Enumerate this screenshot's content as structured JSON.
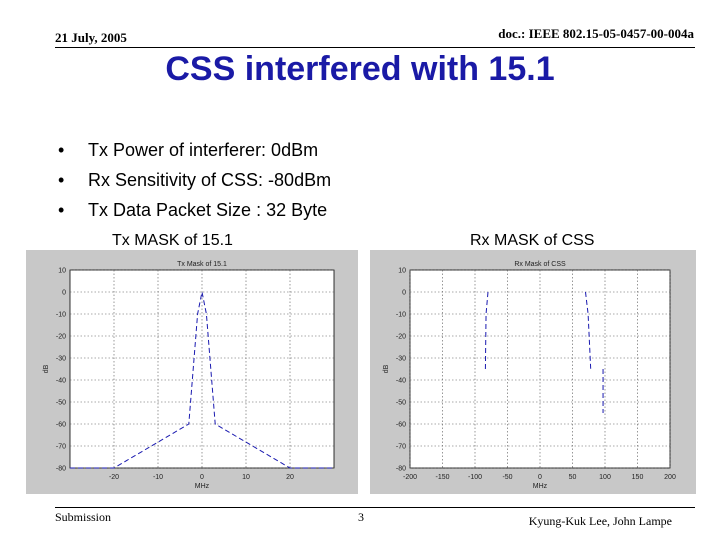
{
  "header": {
    "date": "21 July, 2005",
    "doc_id": "doc.: IEEE 802.15-05-0457-00-004a"
  },
  "title": "CSS interfered with 15.1",
  "bullets": [
    "Tx Power of interferer: 0dBm",
    "Rx Sensitivity of CSS: -80dBm",
    "Tx Data Packet Size : 32 Byte"
  ],
  "plots": {
    "left_label": "Tx MASK of 15.1",
    "right_label": "Rx MASK of CSS"
  },
  "chart_data": [
    {
      "type": "line",
      "title": "Tx Mask of 15.1",
      "xlabel": "MHz",
      "ylabel": "dB",
      "xlim": [
        -30,
        30
      ],
      "ylim": [
        -80,
        10
      ],
      "x_ticks": [
        "-20",
        "-10",
        "0",
        "10",
        "20"
      ],
      "y_ticks": [
        "10",
        "0",
        "-10",
        "-20",
        "-30",
        "-40",
        "-50",
        "-60",
        "-70",
        "-80"
      ],
      "grid": true,
      "series": [
        {
          "x": [
            -30,
            -20,
            -3,
            -1,
            0,
            1,
            3,
            20,
            30
          ],
          "y": [
            -80,
            -80,
            -60,
            -10,
            0,
            -10,
            -60,
            -80,
            -80
          ]
        }
      ]
    },
    {
      "type": "line",
      "title": "Rx Mask of CSS",
      "xlabel": "MHz",
      "ylabel": "dB",
      "xlim": [
        -200,
        200
      ],
      "ylim": [
        -80,
        10
      ],
      "x_ticks": [
        "-200",
        "-150",
        "-100",
        "-50",
        "0",
        "50",
        "100",
        "150",
        "200"
      ],
      "y_ticks": [
        "10",
        "0",
        "-10",
        "-20",
        "-30",
        "-40",
        "-50",
        "-60",
        "-70",
        "-80"
      ],
      "grid": true,
      "series": [
        {
          "x": [
            -84,
            -83,
            -80
          ],
          "y": [
            -35,
            -10,
            0
          ]
        },
        {
          "x": [
            70,
            74,
            78
          ],
          "y": [
            0,
            -10,
            -35
          ]
        },
        {
          "x": [
            97,
            97
          ],
          "y": [
            -35,
            -55
          ]
        }
      ]
    }
  ],
  "footer": {
    "left": "Submission",
    "page": "3",
    "authors": "Kyung-Kuk Lee, John Lampe"
  }
}
